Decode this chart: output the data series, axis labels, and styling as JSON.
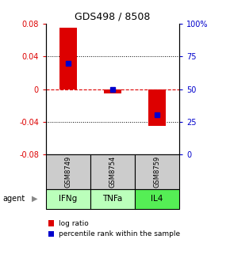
{
  "title": "GDS498 / 8508",
  "samples": [
    "GSM8749",
    "GSM8754",
    "GSM8759"
  ],
  "agents": [
    "IFNg",
    "TNFa",
    "IL4"
  ],
  "log_ratios": [
    0.075,
    -0.005,
    -0.045
  ],
  "percentile_ranks": [
    0.7,
    0.5,
    0.3
  ],
  "ylim": [
    -0.08,
    0.08
  ],
  "yticks_left": [
    -0.08,
    -0.04,
    0,
    0.04,
    0.08
  ],
  "yticks_right": [
    0,
    25,
    50,
    75,
    100
  ],
  "bar_color": "#dd0000",
  "dot_color": "#0000cc",
  "bar_width": 0.4,
  "zero_line_color": "#dd0000",
  "bg_color": "#ffffff",
  "plot_bg": "#ffffff",
  "agent_colors": [
    "#bbffbb",
    "#bbffbb",
    "#55ee55"
  ],
  "sample_bg": "#cccccc",
  "legend_bar_label": "log ratio",
  "legend_dot_label": "percentile rank within the sample",
  "left_label_color": "#dd0000",
  "right_label_color": "#0000cc"
}
